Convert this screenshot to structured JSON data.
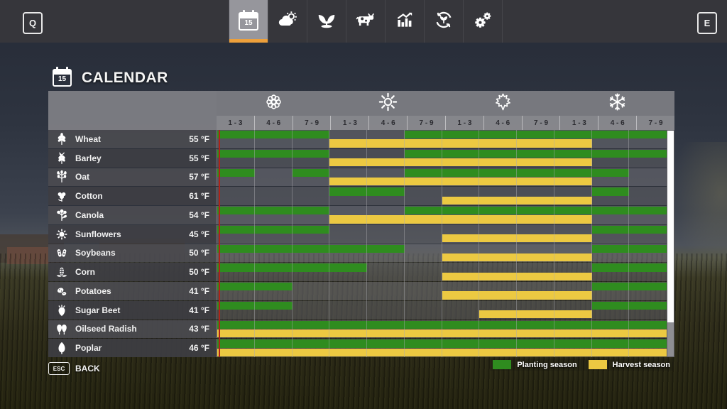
{
  "topbar": {
    "left_key": "Q",
    "right_key": "E",
    "active_tab": "calendar",
    "tabs": [
      "calendar",
      "weather",
      "crops",
      "animals",
      "statistics",
      "seasons-cycle",
      "settings"
    ],
    "calendar_day": "15",
    "accent_color": "#eda03b"
  },
  "title": {
    "text": "CALENDAR",
    "icon_day": "15"
  },
  "calendar": {
    "seasons": [
      {
        "name": "Spring",
        "icon": "flower-icon"
      },
      {
        "name": "Summer",
        "icon": "sun-icon"
      },
      {
        "name": "Autumn",
        "icon": "maple-leaf-icon"
      },
      {
        "name": "Winter",
        "icon": "snowflake-icon"
      }
    ],
    "month_labels": [
      "1 - 3",
      "4 - 6",
      "7 - 9"
    ],
    "columns_per_season": 3,
    "colors": {
      "planting": "#2f8c1f",
      "harvest": "#ecc942",
      "current_day_line": "#b02318"
    },
    "current_day_column": 1,
    "rows": [
      {
        "crop": "Wheat",
        "temp": "55 °F",
        "icon": "wheat-icon",
        "planting": [
          [
            1,
            3
          ],
          [
            6,
            12
          ]
        ],
        "harvest": [
          [
            4,
            10
          ]
        ]
      },
      {
        "crop": "Barley",
        "temp": "55 °F",
        "icon": "barley-icon",
        "planting": [
          [
            1,
            3
          ],
          [
            6,
            12
          ]
        ],
        "harvest": [
          [
            4,
            10
          ]
        ]
      },
      {
        "crop": "Oat",
        "temp": "57 °F",
        "icon": "oat-icon",
        "planting": [
          [
            1,
            1
          ],
          [
            3,
            3
          ],
          [
            6,
            11
          ]
        ],
        "harvest": [
          [
            4,
            10
          ]
        ]
      },
      {
        "crop": "Cotton",
        "temp": "61 °F",
        "icon": "cotton-icon",
        "planting": [
          [
            4,
            5
          ],
          [
            11,
            11
          ]
        ],
        "harvest": [
          [
            7,
            10
          ]
        ]
      },
      {
        "crop": "Canola",
        "temp": "54 °F",
        "icon": "canola-icon",
        "planting": [
          [
            1,
            3
          ],
          [
            6,
            12
          ]
        ],
        "harvest": [
          [
            4,
            10
          ]
        ]
      },
      {
        "crop": "Sunflowers",
        "temp": "45 °F",
        "icon": "sunflower-icon",
        "planting": [
          [
            1,
            3
          ],
          [
            11,
            12
          ]
        ],
        "harvest": [
          [
            7,
            10
          ]
        ]
      },
      {
        "crop": "Soybeans",
        "temp": "50 °F",
        "icon": "soybeans-icon",
        "planting": [
          [
            1,
            5
          ],
          [
            11,
            12
          ]
        ],
        "harvest": [
          [
            7,
            10
          ]
        ]
      },
      {
        "crop": "Corn",
        "temp": "50 °F",
        "icon": "corn-icon",
        "planting": [
          [
            1,
            4
          ],
          [
            11,
            12
          ]
        ],
        "harvest": [
          [
            7,
            10
          ]
        ]
      },
      {
        "crop": "Potatoes",
        "temp": "41 °F",
        "icon": "potatoes-icon",
        "planting": [
          [
            1,
            2
          ],
          [
            11,
            12
          ]
        ],
        "harvest": [
          [
            7,
            10
          ]
        ]
      },
      {
        "crop": "Sugar Beet",
        "temp": "41 °F",
        "icon": "sugar-beet-icon",
        "planting": [
          [
            1,
            2
          ],
          [
            11,
            12
          ]
        ],
        "harvest": [
          [
            8,
            10
          ]
        ]
      },
      {
        "crop": "Oilseed Radish",
        "temp": "43 °F",
        "icon": "oilseed-radish-icon",
        "planting": [
          [
            1,
            12
          ]
        ],
        "harvest": [
          [
            1,
            12
          ]
        ]
      },
      {
        "crop": "Poplar",
        "temp": "46 °F",
        "icon": "poplar-icon",
        "planting": [
          [
            1,
            12
          ]
        ],
        "harvest": [
          [
            1,
            12
          ]
        ]
      }
    ],
    "legend": [
      {
        "label": "Planting season",
        "color": "#2f8c1f"
      },
      {
        "label": "Harvest season",
        "color": "#ecc942"
      }
    ]
  },
  "footer": {
    "back_key": "ESC",
    "back_label": "BACK"
  }
}
